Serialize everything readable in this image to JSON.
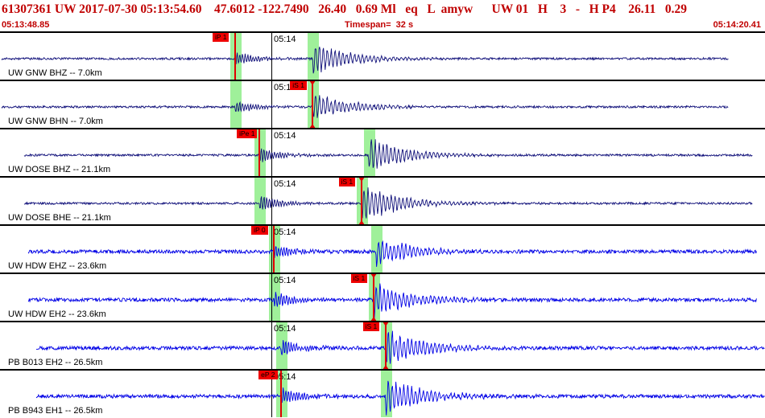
{
  "header": {
    "title": "61307361 UW 2017-07-30 05:13:54.60    47.6012 -122.7490   26.40   0.69 Ml   eq   L  amyw      UW 01   H    3   -   H P4    26.11   0.29",
    "start_time": "05:13:48.85",
    "timespan": "Timespan=  32 s",
    "end_time": "05:14:20.41"
  },
  "colors": {
    "header_text": "#c00000",
    "trace_dark": "#10107a",
    "trace_blue": "#0000e6",
    "window_green": "#9ff09a",
    "pick_red": "#e00000"
  },
  "panels": [
    {
      "station": "UW GNW BHZ -- 7.0km",
      "tick_label": "05:14",
      "trace_color": "dark",
      "p_arrival_s": 9.7,
      "s_arrival_s": 12.9,
      "amplitude": 22,
      "picks": [
        {
          "label": "iP 1",
          "type": "P"
        }
      ]
    },
    {
      "station": "UW GNW BHN -- 7.0km",
      "tick_label": "05:14",
      "trace_color": "dark",
      "p_arrival_s": 9.7,
      "s_arrival_s": 12.9,
      "amplitude": 20,
      "picks": [
        {
          "label": "iS 1",
          "type": "S"
        }
      ]
    },
    {
      "station": "UW DOSE BHZ -- 21.1km",
      "tick_label": "05:14",
      "trace_color": "dark",
      "p_arrival_s": 10.7,
      "s_arrival_s": 15.2,
      "amplitude": 24,
      "picks": [
        {
          "label": "iPe 1",
          "type": "P"
        }
      ]
    },
    {
      "station": "UW DOSE BHE -- 21.1km",
      "tick_label": "05:14",
      "trace_color": "dark",
      "p_arrival_s": 10.7,
      "s_arrival_s": 14.9,
      "amplitude": 26,
      "picks": [
        {
          "label": "iS 1",
          "type": "S"
        }
      ]
    },
    {
      "station": "UW HDW EHZ -- 23.6km",
      "tick_label": "05:14",
      "trace_color": "blue",
      "p_arrival_s": 11.3,
      "s_arrival_s": 15.5,
      "amplitude": 22,
      "picks": [
        {
          "label": "iP 0",
          "type": "P"
        }
      ]
    },
    {
      "station": "UW HDW EH2 -- 23.6km",
      "tick_label": "05:14",
      "trace_color": "blue",
      "p_arrival_s": 11.3,
      "s_arrival_s": 15.4,
      "amplitude": 24,
      "picks": [
        {
          "label": "iS 1",
          "type": "S"
        }
      ]
    },
    {
      "station": "PB B013 EH2 -- 26.5km",
      "tick_label": "05:14",
      "trace_color": "blue",
      "p_arrival_s": 11.6,
      "s_arrival_s": 15.9,
      "amplitude": 26,
      "picks": [
        {
          "label": "iS 1",
          "type": "S"
        }
      ]
    },
    {
      "station": "PB B943 EH1 -- 26.5km",
      "tick_label": "05:14",
      "trace_color": "blue",
      "p_arrival_s": 11.6,
      "s_arrival_s": 15.9,
      "amplitude": 26,
      "picks": [
        {
          "label": "eP 2",
          "type": "P"
        }
      ]
    }
  ]
}
